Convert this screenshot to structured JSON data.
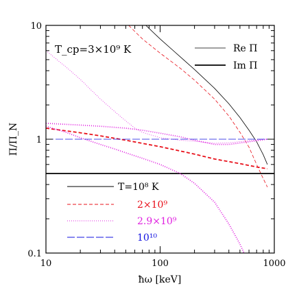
{
  "chart_data": {
    "type": "line",
    "xscale": "log",
    "yscale": "log",
    "xlim": [
      10,
      1000
    ],
    "ylim": [
      0.1,
      10
    ],
    "xticks": [
      {
        "value": 10,
        "label": "10"
      },
      {
        "value": 100,
        "label": "100"
      },
      {
        "value": 1000,
        "label": "1000"
      }
    ],
    "yticks": [
      {
        "value": 0.1,
        "label": "0.1"
      },
      {
        "value": 1,
        "label": "1"
      },
      {
        "value": 10,
        "label": "10"
      }
    ],
    "xlabel": "ħω  [keV]",
    "ylabel": "Π/Π_N",
    "annotation": "T_cp=3×10⁹ K",
    "style_legend": [
      {
        "label": "Re Π",
        "stroke_width": 0.8
      },
      {
        "label": "Im Π",
        "stroke_width": 1.8
      }
    ],
    "series_legend": [
      {
        "label": "T=10⁸ K",
        "color": "#000000",
        "dash": "solid"
      },
      {
        "label": "2×10⁹",
        "color": "#e8101a",
        "dash": "dashed"
      },
      {
        "label": "2.9×10⁹",
        "color": "#e020e0",
        "dash": "dotted"
      },
      {
        "label": "10¹⁰",
        "color": "#1010e0",
        "dash": "longdash"
      }
    ],
    "series": [
      {
        "label": "T=10⁸ K",
        "part": "Re",
        "color": "#000000",
        "dash": "solid",
        "x": [
          75,
          100,
          150,
          200,
          300,
          400,
          500,
          600,
          700,
          800,
          870
        ],
        "y": [
          10,
          7.6,
          5.3,
          4.1,
          2.8,
          2.05,
          1.55,
          1.2,
          0.95,
          0.73,
          0.6
        ]
      },
      {
        "label": "T=10⁸ K",
        "part": "Im",
        "color": "#000000",
        "dash": "solid",
        "x": [
          10,
          1000
        ],
        "y": [
          0.5,
          0.5
        ]
      },
      {
        "label": "2×10⁹",
        "part": "Re",
        "color": "#e8101a",
        "dash": "dashed",
        "x": [
          53,
          70,
          100,
          150,
          200,
          300,
          400,
          500,
          600,
          700,
          800,
          870
        ],
        "y": [
          10,
          7.6,
          5.7,
          4.2,
          3.3,
          2.25,
          1.6,
          1.15,
          0.85,
          0.6,
          0.45,
          0.38
        ]
      },
      {
        "label": "2×10⁹",
        "part": "Im",
        "color": "#e8101a",
        "dash": "dashed",
        "x": [
          10,
          20,
          30,
          50,
          100,
          200,
          300,
          500,
          700,
          870
        ],
        "y": [
          1.25,
          1.14,
          1.07,
          0.98,
          0.86,
          0.74,
          0.67,
          0.61,
          0.57,
          0.55
        ]
      },
      {
        "label": "2.9×10⁹",
        "part": "Re",
        "color": "#e020e0",
        "dash": "dotted",
        "x": [
          10,
          15,
          20,
          30,
          40,
          50,
          60,
          70,
          100,
          150,
          200,
          300,
          400,
          600,
          800,
          900
        ],
        "y": [
          6,
          4.3,
          3.35,
          2.25,
          1.75,
          1.45,
          1.25,
          1.15,
          1.03,
          0.98,
          0.96,
          0.92,
          0.93,
          0.97,
          1.0,
          1.0
        ]
      },
      {
        "label": "2.9×10⁹",
        "part": "Im",
        "color": "#e020e0",
        "dash": "dotted",
        "x": [
          10,
          15,
          20,
          30,
          40,
          50,
          70,
          100,
          150,
          200,
          300,
          400,
          500,
          600
        ],
        "y": [
          1.3,
          1.15,
          1.03,
          0.9,
          0.82,
          0.76,
          0.68,
          0.6,
          0.5,
          0.41,
          0.28,
          0.18,
          0.12,
          0.08
        ]
      },
      {
        "label": "2.9×10⁹",
        "part": "Im2",
        "color": "#e020e0",
        "dash": "dotted",
        "x": [
          10,
          20,
          30,
          50,
          70,
          100,
          150,
          200,
          300,
          400,
          600,
          870
        ],
        "y": [
          1.38,
          1.33,
          1.3,
          1.25,
          1.2,
          1.13,
          1.05,
          0.98,
          0.9,
          0.9,
          0.95,
          1.0
        ]
      },
      {
        "label": "10¹⁰",
        "part": "Re",
        "color": "#1010e0",
        "dash": "longdash",
        "x": [
          10,
          1000
        ],
        "y": [
          1.0,
          1.0
        ]
      }
    ]
  }
}
